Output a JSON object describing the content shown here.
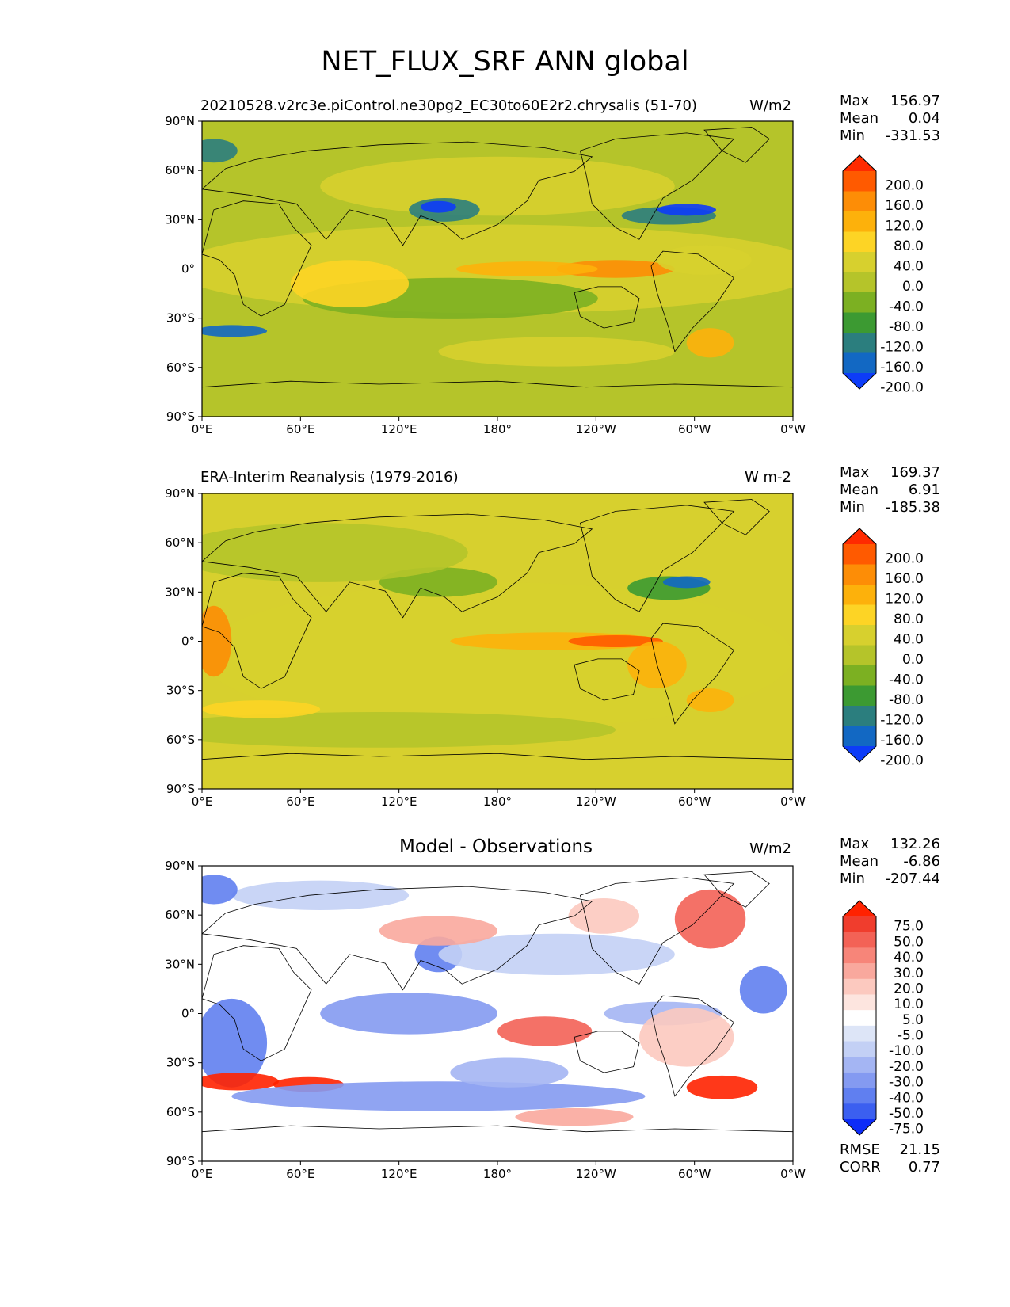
{
  "figure": {
    "title": "NET_FLUX_SRF ANN global"
  },
  "chart_data": [
    {
      "type": "heatmap",
      "map": "global contour map",
      "title": "20210528.v2rc3e.piControl.ne30pg2_EC30to60E2r2.chrysalis (51-70)",
      "units": "W/m2",
      "stats": [
        {
          "label": "Max",
          "value": "156.97"
        },
        {
          "label": "Mean",
          "value": "0.04"
        },
        {
          "label": "Min",
          "value": "-331.53"
        }
      ],
      "x_ticks": [
        "0°E",
        "60°E",
        "120°E",
        "180°",
        "120°W",
        "60°W",
        "0°W"
      ],
      "y_ticks": [
        "90°N",
        "60°N",
        "30°N",
        "0°",
        "30°S",
        "60°S",
        "90°S"
      ],
      "colorbar": {
        "levels": [
          "200.0",
          "160.0",
          "120.0",
          "80.0",
          "40.0",
          "0.0",
          "-40.0",
          "-80.0",
          "-120.0",
          "-160.0",
          "-200.0"
        ],
        "colors": [
          "#ff2a00",
          "#ff5a00",
          "#fd8d06",
          "#fdb10b",
          "#fdd425",
          "#d7d02e",
          "#b5c42a",
          "#7cb022",
          "#3c9a32",
          "#2b7e7e",
          "#1268c3",
          "#0d3cf8"
        ]
      }
    },
    {
      "type": "heatmap",
      "map": "global contour map",
      "title": "ERA-Interim Reanalysis (1979-2016)",
      "units": "W m-2",
      "stats": [
        {
          "label": "Max",
          "value": "169.37"
        },
        {
          "label": "Mean",
          "value": "6.91"
        },
        {
          "label": "Min",
          "value": "-185.38"
        }
      ],
      "x_ticks": [
        "0°E",
        "60°E",
        "120°E",
        "180°",
        "120°W",
        "60°W",
        "0°W"
      ],
      "y_ticks": [
        "90°N",
        "60°N",
        "30°N",
        "0°",
        "30°S",
        "60°S",
        "90°S"
      ],
      "colorbar": {
        "levels": [
          "200.0",
          "160.0",
          "120.0",
          "80.0",
          "40.0",
          "0.0",
          "-40.0",
          "-80.0",
          "-120.0",
          "-160.0",
          "-200.0"
        ],
        "colors": [
          "#ff2a00",
          "#ff5a00",
          "#fd8d06",
          "#fdb10b",
          "#fdd425",
          "#d7d02e",
          "#b5c42a",
          "#7cb022",
          "#3c9a32",
          "#2b7e7e",
          "#1268c3",
          "#0d3cf8"
        ]
      }
    },
    {
      "type": "heatmap",
      "map": "global contour map",
      "title": "Model - Observations",
      "units": "W/m2",
      "stats": [
        {
          "label": "Max",
          "value": "132.26"
        },
        {
          "label": "Mean",
          "value": "-6.86"
        },
        {
          "label": "Min",
          "value": "-207.44"
        }
      ],
      "metrics": [
        {
          "label": "RMSE",
          "value": "21.15"
        },
        {
          "label": "CORR",
          "value": "0.77"
        }
      ],
      "x_ticks": [
        "0°E",
        "60°E",
        "120°E",
        "180°",
        "120°W",
        "60°W",
        "0°W"
      ],
      "y_ticks": [
        "90°N",
        "60°N",
        "30°N",
        "0°",
        "30°S",
        "60°S",
        "90°S"
      ],
      "colorbar": {
        "levels": [
          "75.0",
          "50.0",
          "40.0",
          "30.0",
          "20.0",
          "10.0",
          "5.0",
          "-5.0",
          "-10.0",
          "-20.0",
          "-30.0",
          "-40.0",
          "-50.0",
          "-75.0"
        ],
        "colors": [
          "#ff2200",
          "#f03d2d",
          "#f36256",
          "#f78579",
          "#f9a89d",
          "#fcc9bf",
          "#fde5df",
          "#ffffff",
          "#dde5f7",
          "#c3d0f5",
          "#a4b5f3",
          "#849af1",
          "#607ff0",
          "#3b5ff0",
          "#0d2cf8"
        ]
      }
    }
  ]
}
